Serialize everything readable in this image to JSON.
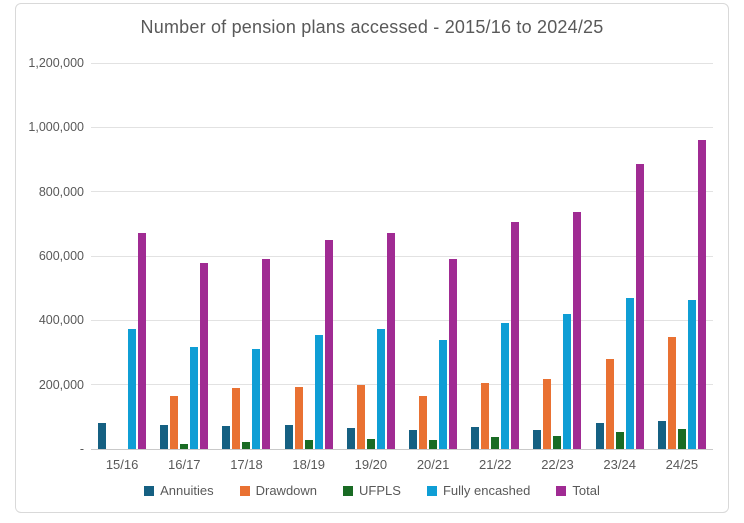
{
  "chart_data": {
    "type": "bar",
    "title": "Number of pension plans accessed - 2015/16 to 2024/25",
    "categories": [
      "15/16",
      "16/17",
      "17/18",
      "18/19",
      "19/20",
      "20/21",
      "21/22",
      "22/23",
      "23/24",
      "24/25"
    ],
    "series": [
      {
        "name": "Annuities",
        "color": "#156082",
        "values": [
          80000,
          74000,
          70000,
          74000,
          66000,
          60000,
          68000,
          59000,
          82000,
          88000
        ]
      },
      {
        "name": "Drawdown",
        "color": "#E97132",
        "values": [
          null,
          166000,
          189000,
          193000,
          198000,
          165000,
          206000,
          217000,
          279000,
          349000
        ]
      },
      {
        "name": "UFPLS",
        "color": "#196B24",
        "values": [
          null,
          17000,
          21000,
          28000,
          32000,
          28000,
          36000,
          40000,
          52000,
          61000
        ]
      },
      {
        "name": "Fully encashed",
        "color": "#0F9ED5",
        "values": [
          372000,
          318000,
          310000,
          355000,
          374000,
          338000,
          393000,
          421000,
          470000,
          462000
        ]
      },
      {
        "name": "Total",
        "color": "#A02B93",
        "values": [
          670000,
          578000,
          590000,
          649000,
          672000,
          592000,
          706000,
          738000,
          885000,
          960000
        ]
      }
    ],
    "y_axis": {
      "min": 0,
      "max": 1200000,
      "tick_interval": 200000,
      "tick_labels_top_to_bottom": [
        "1,200,000",
        "1,000,000",
        "800,000",
        "600,000",
        "400,000",
        "200,000",
        "-"
      ]
    },
    "grid": true,
    "legend_position": "bottom",
    "colors": {
      "title_text": "#595959",
      "axis_text": "#595959",
      "gridline": "#e2e2e2",
      "frame_border": "#d9d9d9",
      "background": "#ffffff"
    }
  }
}
